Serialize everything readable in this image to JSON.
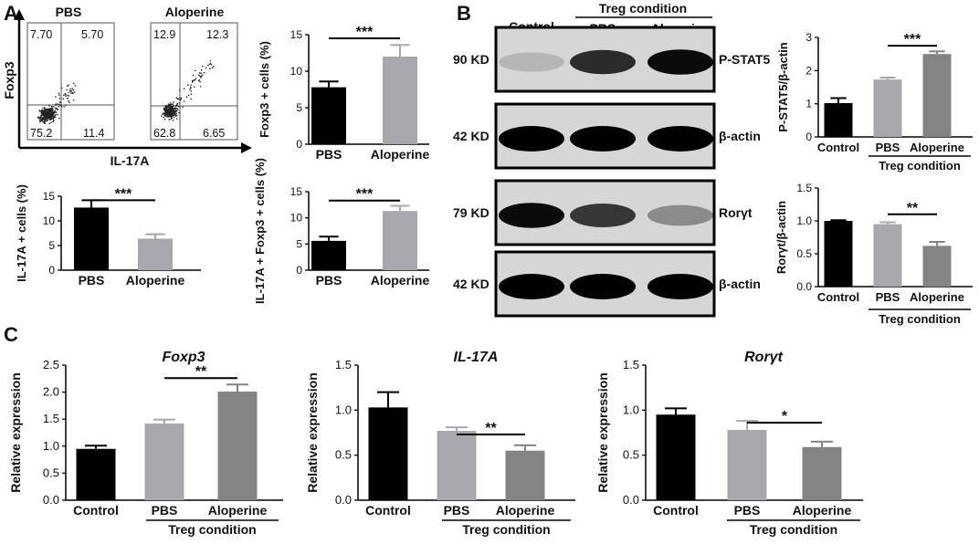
{
  "panel_letters": {
    "a": "A",
    "b": "B",
    "c": "C"
  },
  "blot": {
    "header_left": "Control",
    "header_group": "Treg condition",
    "header_pbs": "PBS",
    "header_alo": "Aloperine",
    "rows": [
      {
        "kd": "90 KD",
        "protein": "P-STAT5",
        "intensity": [
          0.15,
          0.8,
          0.95
        ]
      },
      {
        "kd": "42 KD",
        "protein": "β-actin",
        "intensity": [
          1.0,
          1.0,
          1.0
        ]
      },
      {
        "kd": "79 KD",
        "protein": "Rorγt",
        "intensity": [
          0.95,
          0.75,
          0.35
        ]
      },
      {
        "kd": "42 KD",
        "protein": "β-actin",
        "intensity": [
          1.0,
          1.0,
          1.0
        ]
      }
    ]
  },
  "colors": {
    "black": "#000000",
    "light_gray": "#a8a7ad",
    "dark_gray": "#848484"
  },
  "chart_data": [
    {
      "id": "flow",
      "type": "scatter",
      "title": "",
      "xlabel": "IL-17A",
      "ylabel": "Foxp3",
      "plots": [
        {
          "name": "PBS",
          "quadrants": {
            "ul": "7.70",
            "ur": "5.70",
            "ll": "75.2",
            "lr": "11.4"
          }
        },
        {
          "name": "Aloperine",
          "quadrants": {
            "ul": "12.9",
            "ur": "12.3",
            "ll": "62.8",
            "lr": "6.65"
          }
        }
      ]
    },
    {
      "id": "foxp3_cells",
      "type": "bar",
      "categories": [
        "PBS",
        "Aloperine"
      ],
      "values": [
        7.8,
        12.0
      ],
      "errors": [
        0.8,
        1.6
      ],
      "colors": [
        "#000000",
        "#a8a7ad"
      ],
      "title": "",
      "xlabel": "",
      "ylabel": "Foxp3 + cells (%)",
      "ylim": [
        0,
        15
      ],
      "yticks": [
        "0",
        "5",
        "10",
        "15"
      ],
      "sig": {
        "label": "***",
        "from": 0,
        "to": 1,
        "y": 14.5
      }
    },
    {
      "id": "il17_cells",
      "type": "bar",
      "categories": [
        "PBS",
        "Aloperine"
      ],
      "values": [
        12.7,
        6.4
      ],
      "errors": [
        1.5,
        0.9
      ],
      "colors": [
        "#000000",
        "#a8a7ad"
      ],
      "title": "",
      "xlabel": "",
      "ylabel": "IL-17A + cells (%)",
      "ylim": [
        0,
        15
      ],
      "yticks": [
        "0",
        "5",
        "10",
        "15"
      ],
      "sig": {
        "label": "***",
        "from": 0,
        "to": 1,
        "y": 14.2
      }
    },
    {
      "id": "il17_foxp3_cells",
      "type": "bar",
      "categories": [
        "PBS",
        "Aloperine"
      ],
      "values": [
        5.6,
        11.3
      ],
      "errors": [
        0.8,
        1.0
      ],
      "colors": [
        "#000000",
        "#a8a7ad"
      ],
      "title": "",
      "xlabel": "",
      "ylabel": "IL-17A + Foxp3 + cells (%)",
      "ylim": [
        0,
        15
      ],
      "yticks": [
        "0",
        "5",
        "10",
        "15"
      ],
      "sig": {
        "label": "***",
        "from": 0,
        "to": 1,
        "y": 13.3
      }
    },
    {
      "id": "pstat5_ratio",
      "type": "bar",
      "categories": [
        "Control",
        "PBS",
        "Aloperine"
      ],
      "values": [
        1.02,
        1.73,
        2.5
      ],
      "errors": [
        0.15,
        0.06,
        0.08
      ],
      "colors": [
        "#000000",
        "#a8a7ad",
        "#848484"
      ],
      "title": "",
      "xlabel": "",
      "ylabel": "P-STAT5/β-actin",
      "ylim": [
        0,
        3
      ],
      "yticks": [
        "0",
        "1",
        "2",
        "3"
      ],
      "group_label": "Treg condition",
      "group_from": 1,
      "sig": {
        "label": "***",
        "from": 1,
        "to": 2,
        "y": 2.75
      }
    },
    {
      "id": "rorgt_ratio",
      "type": "bar",
      "categories": [
        "Control",
        "PBS",
        "Aloperine"
      ],
      "values": [
        1.0,
        0.95,
        0.62
      ],
      "errors": [
        0.01,
        0.03,
        0.06
      ],
      "colors": [
        "#000000",
        "#a8a7ad",
        "#848484"
      ],
      "title": "",
      "xlabel": "",
      "ylabel": "Rorγt/β-actin",
      "ylim": [
        0,
        1.5
      ],
      "yticks": [
        "0.0",
        "0.5",
        "1.0",
        "1.5"
      ],
      "group_label": "Treg condition",
      "group_from": 1,
      "sig": {
        "label": "**",
        "from": 1,
        "to": 2,
        "y": 1.1
      }
    },
    {
      "id": "foxp3_expr",
      "type": "bar",
      "categories": [
        "Control",
        "PBS",
        "Aloperine"
      ],
      "values": [
        0.95,
        1.42,
        2.01
      ],
      "errors": [
        0.06,
        0.07,
        0.13
      ],
      "colors": [
        "#000000",
        "#a8a7ad",
        "#848484"
      ],
      "title": "Foxp3",
      "xlabel": "",
      "ylabel": "Relative expression",
      "ylim": [
        0,
        2.5
      ],
      "yticks": [
        "0.0",
        "0.5",
        "1.0",
        "1.5",
        "2.0",
        "2.5"
      ],
      "group_label": "Treg condition",
      "group_from": 1,
      "sig": {
        "label": "**",
        "from": 1,
        "to": 2,
        "y": 2.26
      }
    },
    {
      "id": "il17_expr",
      "type": "bar",
      "categories": [
        "Control",
        "PBS",
        "Aloperine"
      ],
      "values": [
        1.03,
        0.77,
        0.55
      ],
      "errors": [
        0.17,
        0.04,
        0.06
      ],
      "colors": [
        "#000000",
        "#a8a7ad",
        "#848484"
      ],
      "title": "IL-17A",
      "xlabel": "",
      "ylabel": "Relative expression",
      "ylim": [
        0,
        1.5
      ],
      "yticks": [
        "0.0",
        "0.5",
        "1.0",
        "1.5"
      ],
      "group_label": "Treg condition",
      "group_from": 1,
      "sig": {
        "label": "**",
        "from": 1,
        "to": 2,
        "y": 0.73
      }
    },
    {
      "id": "rorgt_expr",
      "type": "bar",
      "categories": [
        "Control",
        "PBS",
        "Aloperine"
      ],
      "values": [
        0.95,
        0.78,
        0.59
      ],
      "errors": [
        0.07,
        0.1,
        0.06
      ],
      "colors": [
        "#000000",
        "#a8a7ad",
        "#848484"
      ],
      "title": "Rorγt",
      "xlabel": "",
      "ylabel": "Relative expression",
      "ylim": [
        0,
        1.5
      ],
      "yticks": [
        "0.0",
        "0.5",
        "1.0",
        "1.5"
      ],
      "group_label": "Treg condition",
      "group_from": 1,
      "sig": {
        "label": "*",
        "from": 1,
        "to": 2,
        "y": 0.86
      }
    }
  ]
}
